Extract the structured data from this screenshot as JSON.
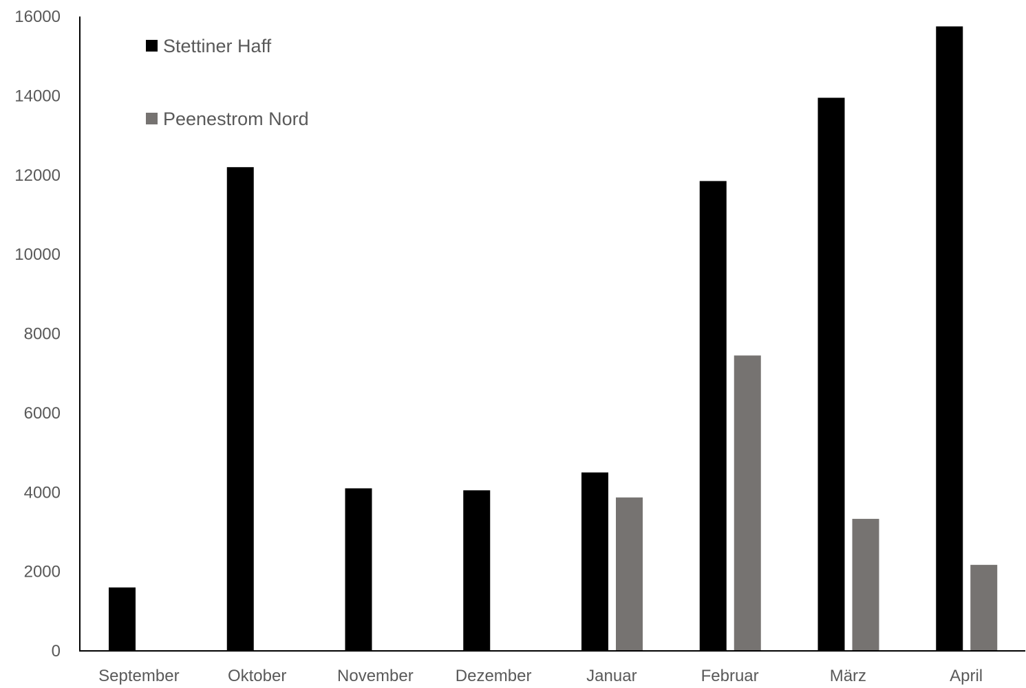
{
  "chart_data": {
    "type": "bar",
    "categories": [
      "September",
      "Oktober",
      "November",
      "Dezember",
      "Januar",
      "Februar",
      "März",
      "April"
    ],
    "series": [
      {
        "name": "Stettiner Haff",
        "color": "#000000",
        "values": [
          1600,
          12200,
          4100,
          4050,
          4500,
          11850,
          13950,
          15750
        ]
      },
      {
        "name": "Peenestrom Nord",
        "color": "#767371",
        "values": [
          0,
          0,
          0,
          0,
          3870,
          7450,
          3330,
          2170
        ]
      }
    ],
    "ylim": [
      0,
      16000
    ],
    "yticks": [
      0,
      2000,
      4000,
      6000,
      8000,
      10000,
      12000,
      14000,
      16000
    ],
    "xlabel": "",
    "ylabel": "",
    "title": "",
    "grid": false,
    "legend_position": "top-left"
  }
}
